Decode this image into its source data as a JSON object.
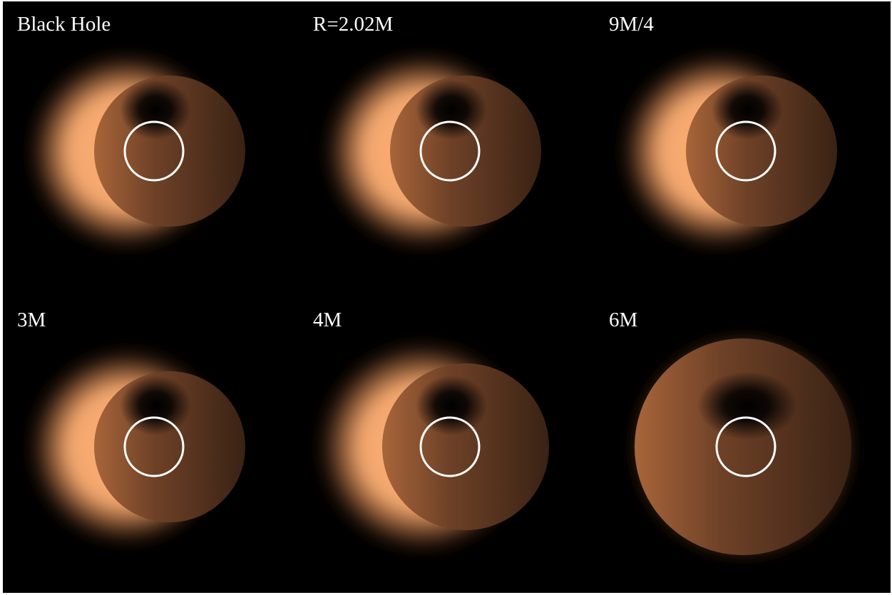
{
  "figure": {
    "background_color": "#000000",
    "glow_color": "#ffb074",
    "ring_color": "#ffffff",
    "panels": [
      {
        "label": "Black Hole",
        "image": "black-hole-shadow"
      },
      {
        "label": "R=2.02M",
        "image": "compact-object-shadow"
      },
      {
        "label": "9M/4",
        "image": "compact-object-shadow"
      },
      {
        "label": "3M",
        "image": "compact-object-shadow"
      },
      {
        "label": "4M",
        "image": "compact-object-shadow"
      },
      {
        "label": "6M",
        "image": "compact-object-shadow"
      }
    ]
  }
}
